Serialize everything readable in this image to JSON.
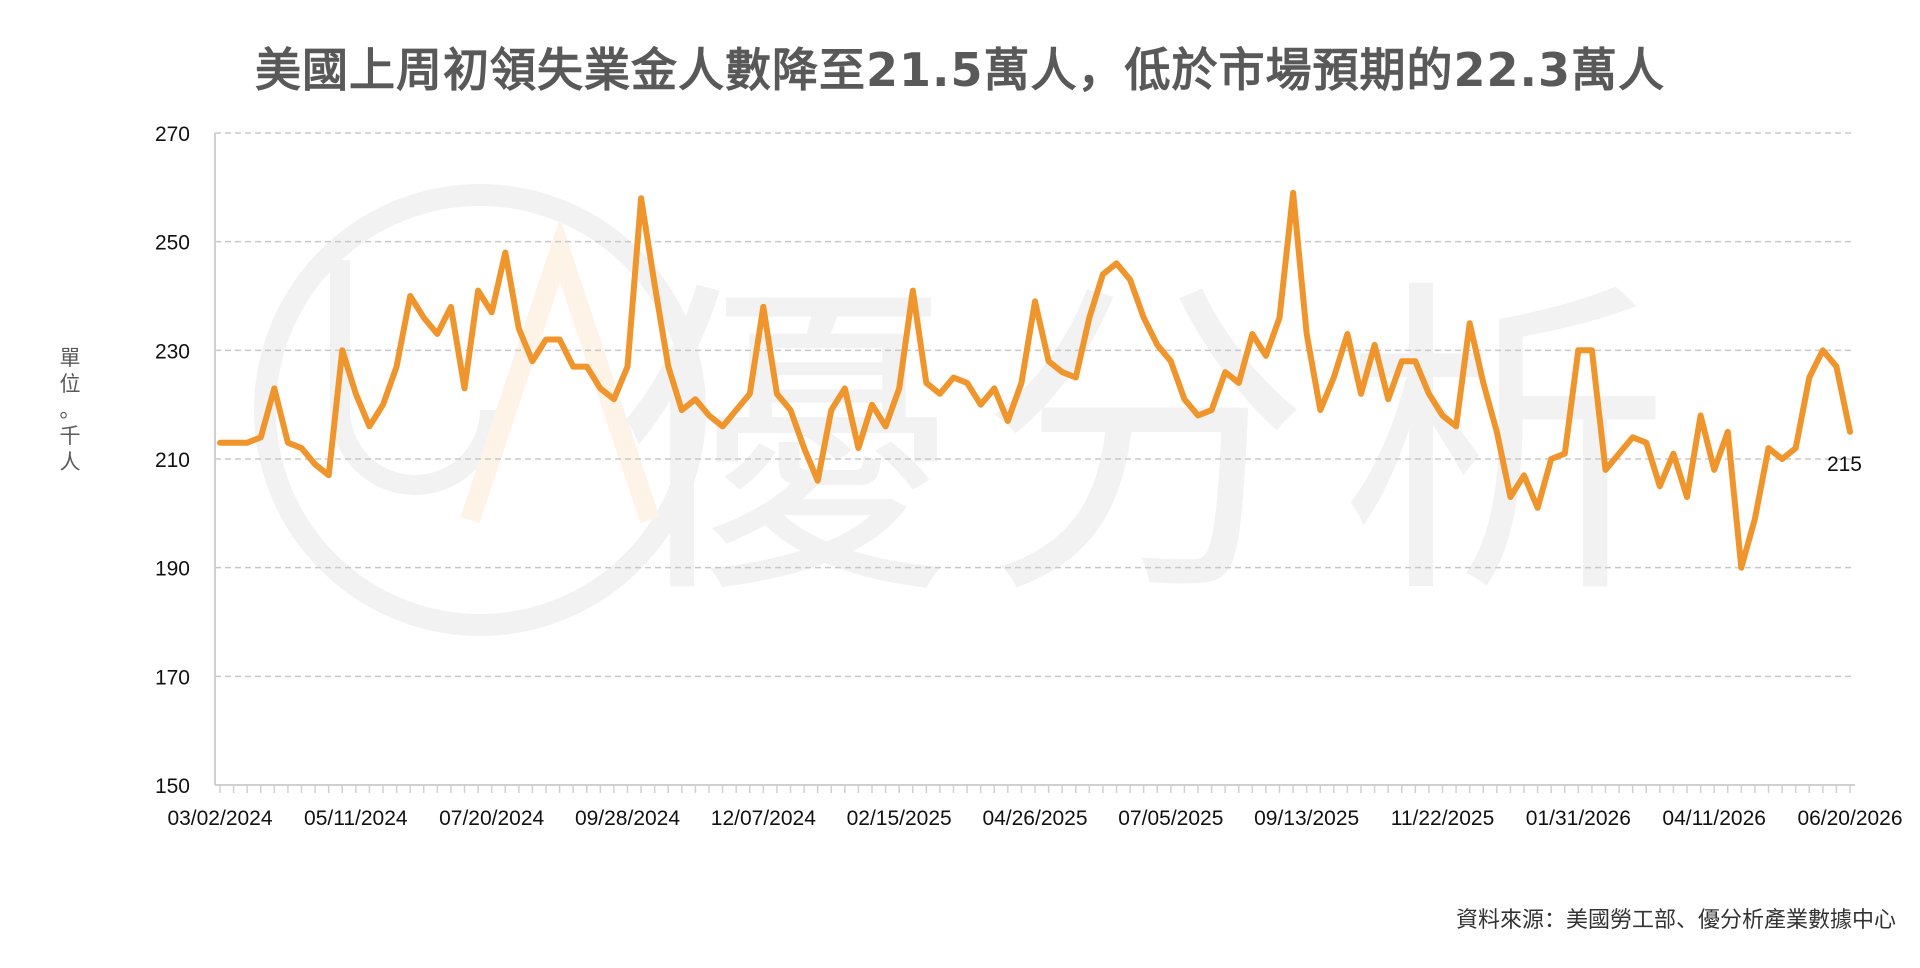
{
  "chart_data": {
    "type": "line",
    "title": "美國上周初領失業金人數降至21.5萬人，低於市場預期的22.3萬人",
    "ylabel": "單位：千人",
    "source": "資料來源：美國勞工部、優分析產業數據中心",
    "watermark": "優分析",
    "ylim": [
      150,
      270
    ],
    "yticks": [
      150,
      170,
      190,
      210,
      230,
      250,
      270
    ],
    "grid": "horizontal dashed",
    "xtick_labels": [
      "03/02/2024",
      "05/11/2024",
      "07/20/2024",
      "09/28/2024",
      "12/07/2024",
      "02/15/2025",
      "04/26/2025",
      "07/05/2025",
      "09/13/2025",
      "11/22/2025",
      "01/31/2026",
      "04/11/2026",
      "06/20/2026"
    ],
    "last_value_label": "215",
    "colors": {
      "line": "#F0952B",
      "grid": "#C8C8C8",
      "axis": "#D0D0D0",
      "watermark": "#F2F2F2"
    },
    "series": [
      {
        "values": [
          213,
          213,
          213,
          214,
          223,
          213,
          212,
          209,
          207,
          230,
          222,
          216,
          220,
          227,
          240,
          236,
          233,
          238,
          223,
          241,
          237,
          248,
          234,
          228,
          232,
          232,
          227,
          227,
          223,
          221,
          227,
          258,
          242,
          227,
          219,
          221,
          218,
          216,
          219,
          222,
          238,
          222,
          219,
          212,
          206,
          219,
          223,
          212,
          220,
          216,
          223,
          241,
          224,
          222,
          225,
          224,
          220,
          223,
          217,
          224,
          239,
          228,
          226,
          225,
          236,
          244,
          246,
          243,
          236,
          231,
          228,
          221,
          218,
          219,
          226,
          224,
          233,
          229,
          236,
          259,
          233,
          219,
          225,
          233,
          222,
          231,
          221,
          228,
          228,
          222,
          218,
          216,
          235,
          224,
          215,
          203,
          207,
          201,
          210,
          211,
          230,
          230,
          208,
          211,
          214,
          213,
          205,
          211,
          203,
          218,
          208,
          215,
          190,
          199,
          212,
          210,
          212,
          225,
          230,
          227,
          215
        ]
      }
    ]
  }
}
